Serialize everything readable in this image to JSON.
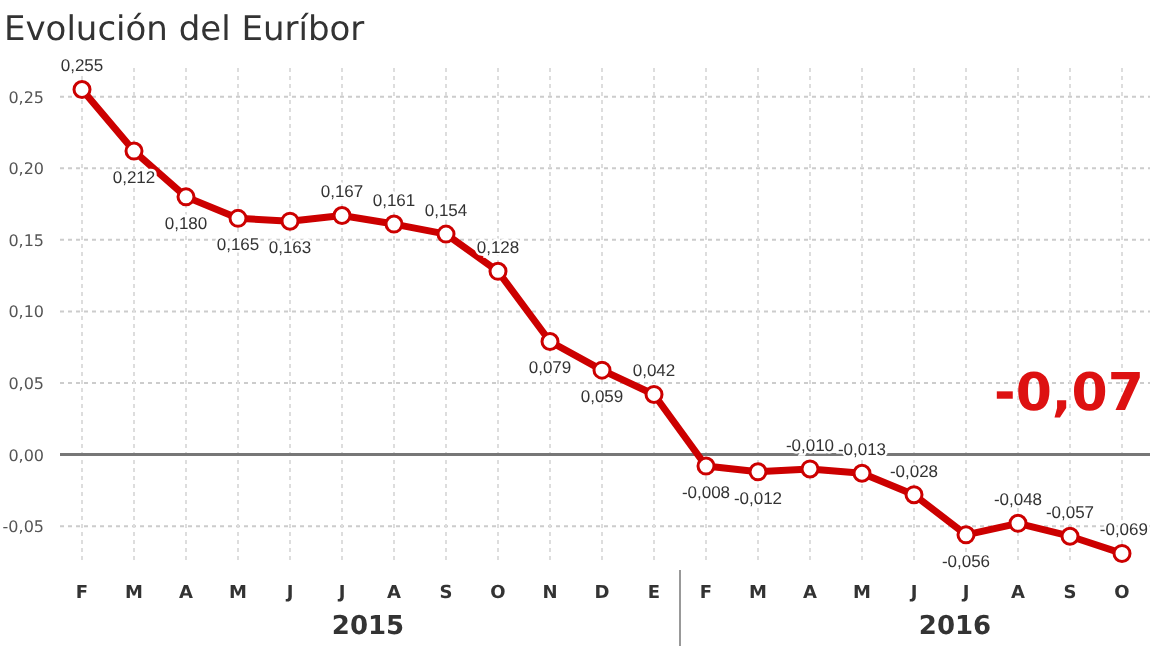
{
  "chart_data": {
    "type": "line",
    "title": "Evolución del Euríbor",
    "categories": [
      "F",
      "M",
      "A",
      "M",
      "J",
      "J",
      "A",
      "S",
      "O",
      "N",
      "D",
      "E",
      "F",
      "M",
      "A",
      "M",
      "J",
      "J",
      "A",
      "S",
      "O"
    ],
    "series": [
      {
        "color": "#cc0000",
        "values": [
          0.255,
          0.212,
          0.18,
          0.165,
          0.163,
          0.167,
          0.161,
          0.154,
          0.128,
          0.079,
          0.059,
          0.042,
          -0.008,
          -0.012,
          -0.01,
          -0.013,
          -0.028,
          -0.056,
          -0.048,
          -0.057,
          -0.069
        ]
      }
    ],
    "value_labels": [
      "0,255",
      "0,212",
      "0,180",
      "0,165",
      "0,163",
      "0,167",
      "0,161",
      "0,154",
      "0,128",
      "0,079",
      "0,059",
      "0,042",
      "-0,008",
      "-0,012",
      "-0,010",
      "-0,013",
      "-0,028",
      "-0,056",
      "-0,048",
      "-0,057",
      "-0,069"
    ],
    "ylim": [
      -0.075,
      0.27
    ],
    "yticks": [
      {
        "value": 0.25,
        "label": "0,25"
      },
      {
        "value": 0.2,
        "label": "0,20"
      },
      {
        "value": 0.15,
        "label": "0,15"
      },
      {
        "value": 0.1,
        "label": "0,10"
      },
      {
        "value": 0.05,
        "label": "0,05"
      },
      {
        "value": 0,
        "label": "0,00"
      },
      {
        "value": -0.05,
        "label": "-0,05"
      }
    ],
    "ref_lines": [
      {
        "axis": "y",
        "value": 0,
        "color": "#777777"
      }
    ],
    "annotations": [
      "2015",
      "2016",
      "-0,07"
    ],
    "grid": true,
    "marker": "circle",
    "line_style": "solid"
  }
}
